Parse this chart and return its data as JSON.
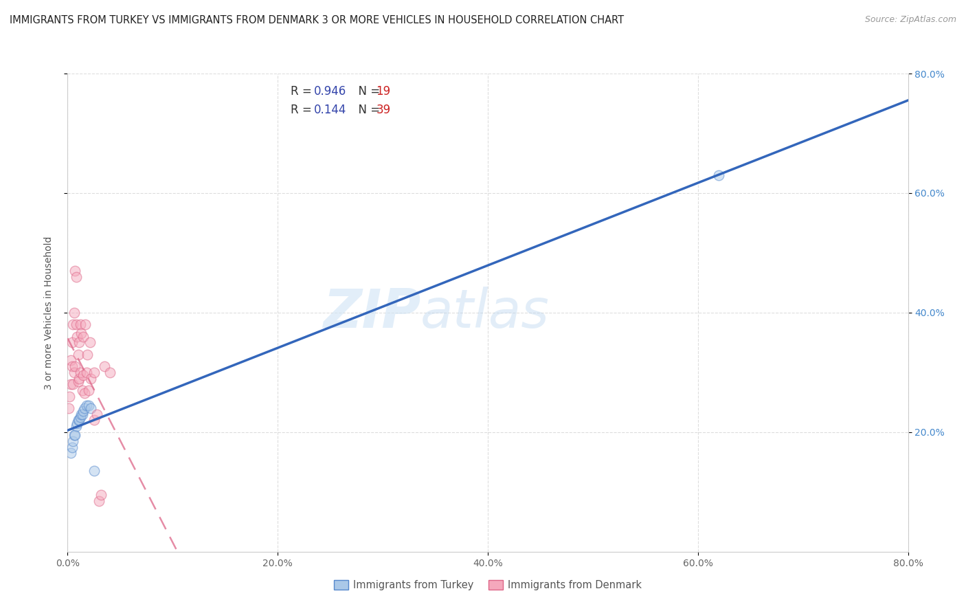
{
  "title": "IMMIGRANTS FROM TURKEY VS IMMIGRANTS FROM DENMARK 3 OR MORE VEHICLES IN HOUSEHOLD CORRELATION CHART",
  "source": "Source: ZipAtlas.com",
  "ylabel": "3 or more Vehicles in Household",
  "xmin": 0.0,
  "xmax": 0.8,
  "ymin": 0.0,
  "ymax": 0.8,
  "xtick_vals": [
    0.0,
    0.2,
    0.4,
    0.6,
    0.8
  ],
  "ytick_vals": [
    0.2,
    0.4,
    0.6,
    0.8
  ],
  "turkey_color": "#aac8e8",
  "denmark_color": "#f5a8bc",
  "turkey_edge_color": "#5588cc",
  "denmark_edge_color": "#dd6688",
  "turkey_line_color": "#3366bb",
  "denmark_line_color": "#dd6688",
  "legend_R_color": "#3344aa",
  "legend_N_color": "#cc2222",
  "watermark_color": "#d0e4f5",
  "right_tick_color": "#4488cc",
  "turkey_x": [
    0.003,
    0.004,
    0.005,
    0.006,
    0.007,
    0.008,
    0.009,
    0.01,
    0.011,
    0.012,
    0.013,
    0.014,
    0.015,
    0.016,
    0.018,
    0.02,
    0.022,
    0.025,
    0.62
  ],
  "turkey_y": [
    0.165,
    0.175,
    0.185,
    0.195,
    0.195,
    0.21,
    0.215,
    0.22,
    0.22,
    0.225,
    0.23,
    0.23,
    0.235,
    0.24,
    0.245,
    0.245,
    0.24,
    0.135,
    0.63
  ],
  "denmark_x": [
    0.001,
    0.002,
    0.003,
    0.003,
    0.004,
    0.004,
    0.005,
    0.005,
    0.006,
    0.006,
    0.007,
    0.007,
    0.008,
    0.008,
    0.009,
    0.01,
    0.01,
    0.011,
    0.011,
    0.012,
    0.012,
    0.013,
    0.014,
    0.015,
    0.015,
    0.016,
    0.017,
    0.018,
    0.019,
    0.02,
    0.021,
    0.022,
    0.025,
    0.025,
    0.028,
    0.03,
    0.032,
    0.035,
    0.04
  ],
  "denmark_y": [
    0.24,
    0.26,
    0.28,
    0.32,
    0.31,
    0.35,
    0.28,
    0.38,
    0.3,
    0.4,
    0.31,
    0.47,
    0.38,
    0.46,
    0.36,
    0.285,
    0.33,
    0.29,
    0.35,
    0.3,
    0.38,
    0.365,
    0.27,
    0.295,
    0.36,
    0.265,
    0.38,
    0.3,
    0.33,
    0.27,
    0.35,
    0.29,
    0.22,
    0.3,
    0.23,
    0.085,
    0.095,
    0.31,
    0.3
  ],
  "marker_size": 110,
  "marker_alpha": 0.5
}
